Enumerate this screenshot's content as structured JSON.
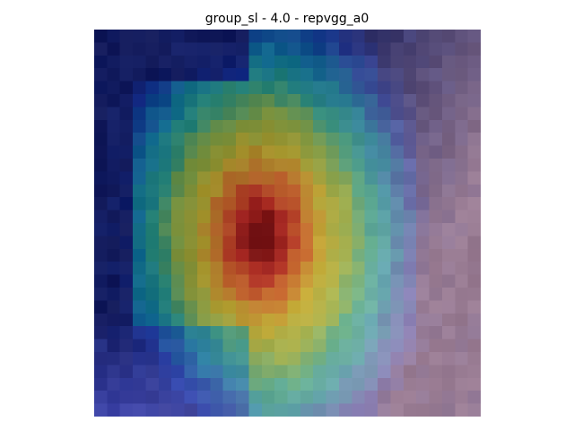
{
  "figure": {
    "title": "group_sl - 4.0 - repvgg_a0"
  },
  "image": {
    "grid_columns": 30,
    "grid_rows": 30,
    "dominant_colors": {
      "dark_background": "#1e2f4e",
      "hot_core": "#8a1a0a",
      "warm": "#e8866a",
      "yellow": "#d9d24a",
      "green": "#3fae6e",
      "cyan": "#6fe6e6",
      "blue": "#6b7cf0"
    }
  }
}
